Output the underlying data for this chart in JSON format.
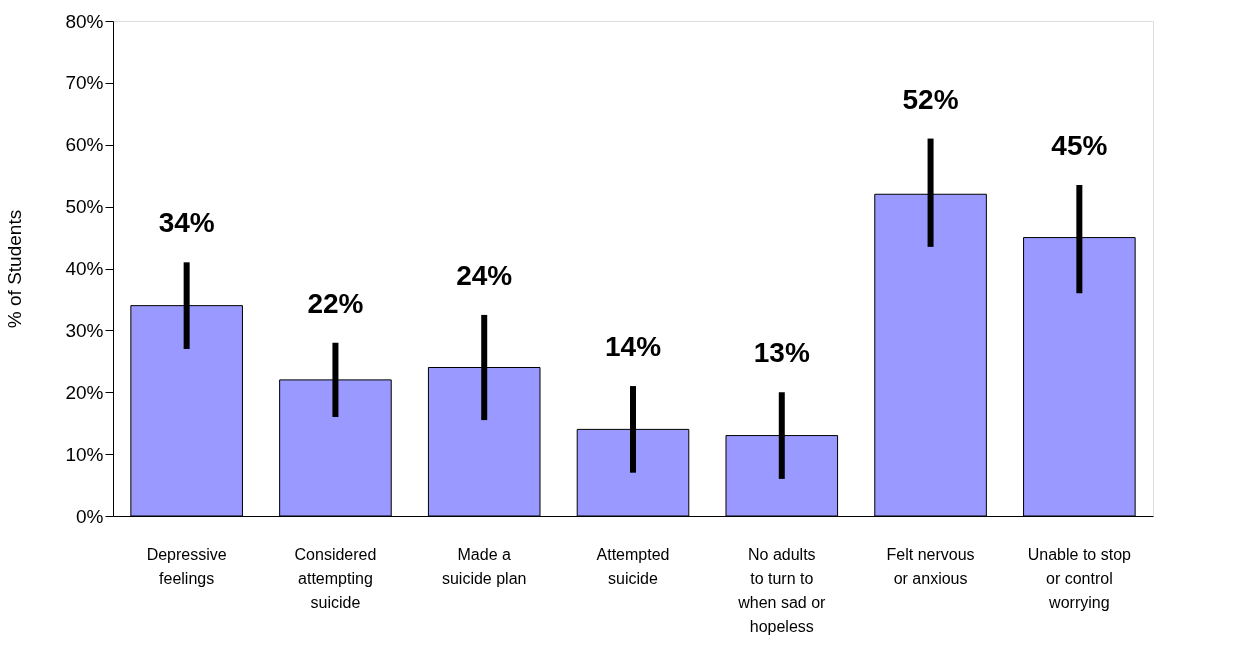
{
  "chart_data": {
    "type": "bar",
    "ylabel": "% of Students",
    "categories": [
      "Depressive\nfeelings",
      "Considered\nattempting\nsuicide",
      "Made a\nsuicide plan",
      "Attempted\nsuicide",
      "No adults\nto turn to\nwhen sad or\nhopeless",
      "Felt nervous\nor anxious",
      "Unable to stop\nor control\nworrying"
    ],
    "values": [
      34,
      22,
      24,
      14,
      13,
      52,
      45
    ],
    "value_labels": [
      "34%",
      "22%",
      "24%",
      "14%",
      "13%",
      "52%",
      "45%"
    ],
    "errors": [
      [
        27,
        41
      ],
      [
        16,
        28
      ],
      [
        15.5,
        32.5
      ],
      [
        7,
        21
      ],
      [
        6,
        20
      ],
      [
        43.5,
        61
      ],
      [
        36,
        53.5
      ]
    ],
    "color": "#9999ff",
    "ylim": [
      0,
      80
    ],
    "yticks": [
      {
        "value": 0,
        "label": "0%"
      },
      {
        "value": 10,
        "label": "10%"
      },
      {
        "value": 20,
        "label": "20%"
      },
      {
        "value": 30,
        "label": "30%"
      },
      {
        "value": 40,
        "label": "40%"
      },
      {
        "value": 50,
        "label": "50%"
      },
      {
        "value": 60,
        "label": "60%"
      },
      {
        "value": 70,
        "label": "70%"
      },
      {
        "value": 80,
        "label": "80%"
      }
    ],
    "grid": false
  }
}
